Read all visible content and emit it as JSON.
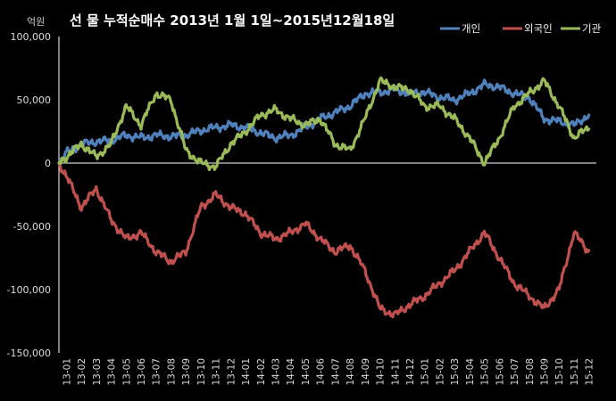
{
  "chart_data": {
    "type": "line",
    "title": "선 물 누적순매수 2013년 1월 1일~2015년12월18일",
    "y_unit": "억원",
    "ylim": [
      -150000,
      100000
    ],
    "y_ticks": [
      {
        "value": 100000,
        "label": "100,000"
      },
      {
        "value": 50000,
        "label": "50,000"
      },
      {
        "value": 0,
        "label": "0"
      },
      {
        "value": -50000,
        "label": "-50,000"
      },
      {
        "value": -100000,
        "label": "-100,000"
      },
      {
        "value": -150000,
        "label": "-150,000"
      }
    ],
    "categories": [
      "13-01",
      "13-02",
      "13-03",
      "13-04",
      "13-05",
      "13-06",
      "13-07",
      "13-08",
      "13-09",
      "13-10",
      "13-11",
      "13-12",
      "14-01",
      "14-02",
      "14-03",
      "14-04",
      "14-05",
      "14-06",
      "14-07",
      "14-08",
      "14-09",
      "14-10",
      "14-11",
      "14-12",
      "15-01",
      "15-02",
      "15-03",
      "15-04",
      "15-05",
      "15-06",
      "15-07",
      "15-08",
      "15-09",
      "15-10",
      "15-11",
      "15-12"
    ],
    "legend_position": "top-right",
    "grid": false,
    "series": [
      {
        "name": "개인",
        "color": "#4F81BD",
        "values": [
          8000,
          15000,
          17000,
          18000,
          22000,
          20000,
          22000,
          21000,
          22000,
          26000,
          28000,
          30000,
          28000,
          24000,
          20000,
          22000,
          28000,
          35000,
          40000,
          45000,
          55000,
          56000,
          58000,
          55000,
          56000,
          52000,
          50000,
          55000,
          62000,
          60000,
          55000,
          52000,
          35000,
          33000,
          30000,
          38000
        ]
      },
      {
        "name": "외국인",
        "color": "#C0504D",
        "values": [
          -10000,
          -35000,
          -20000,
          -45000,
          -60000,
          -55000,
          -70000,
          -78000,
          -70000,
          -35000,
          -25000,
          -35000,
          -40000,
          -55000,
          -60000,
          -55000,
          -48000,
          -60000,
          -70000,
          -65000,
          -85000,
          -115000,
          -120000,
          -112000,
          -105000,
          -95000,
          -85000,
          -70000,
          -55000,
          -75000,
          -95000,
          -105000,
          -115000,
          -100000,
          -55000,
          -70000
        ]
      },
      {
        "name": "기관",
        "color": "#9BBB59",
        "values": [
          5000,
          15000,
          5000,
          15000,
          45000,
          30000,
          55000,
          50000,
          10000,
          0,
          -3000,
          15000,
          25000,
          38000,
          42000,
          35000,
          30000,
          35000,
          15000,
          10000,
          35000,
          65000,
          60000,
          58000,
          45000,
          45000,
          35000,
          20000,
          0,
          20000,
          45000,
          55000,
          65000,
          45000,
          20000,
          28000
        ]
      }
    ]
  }
}
